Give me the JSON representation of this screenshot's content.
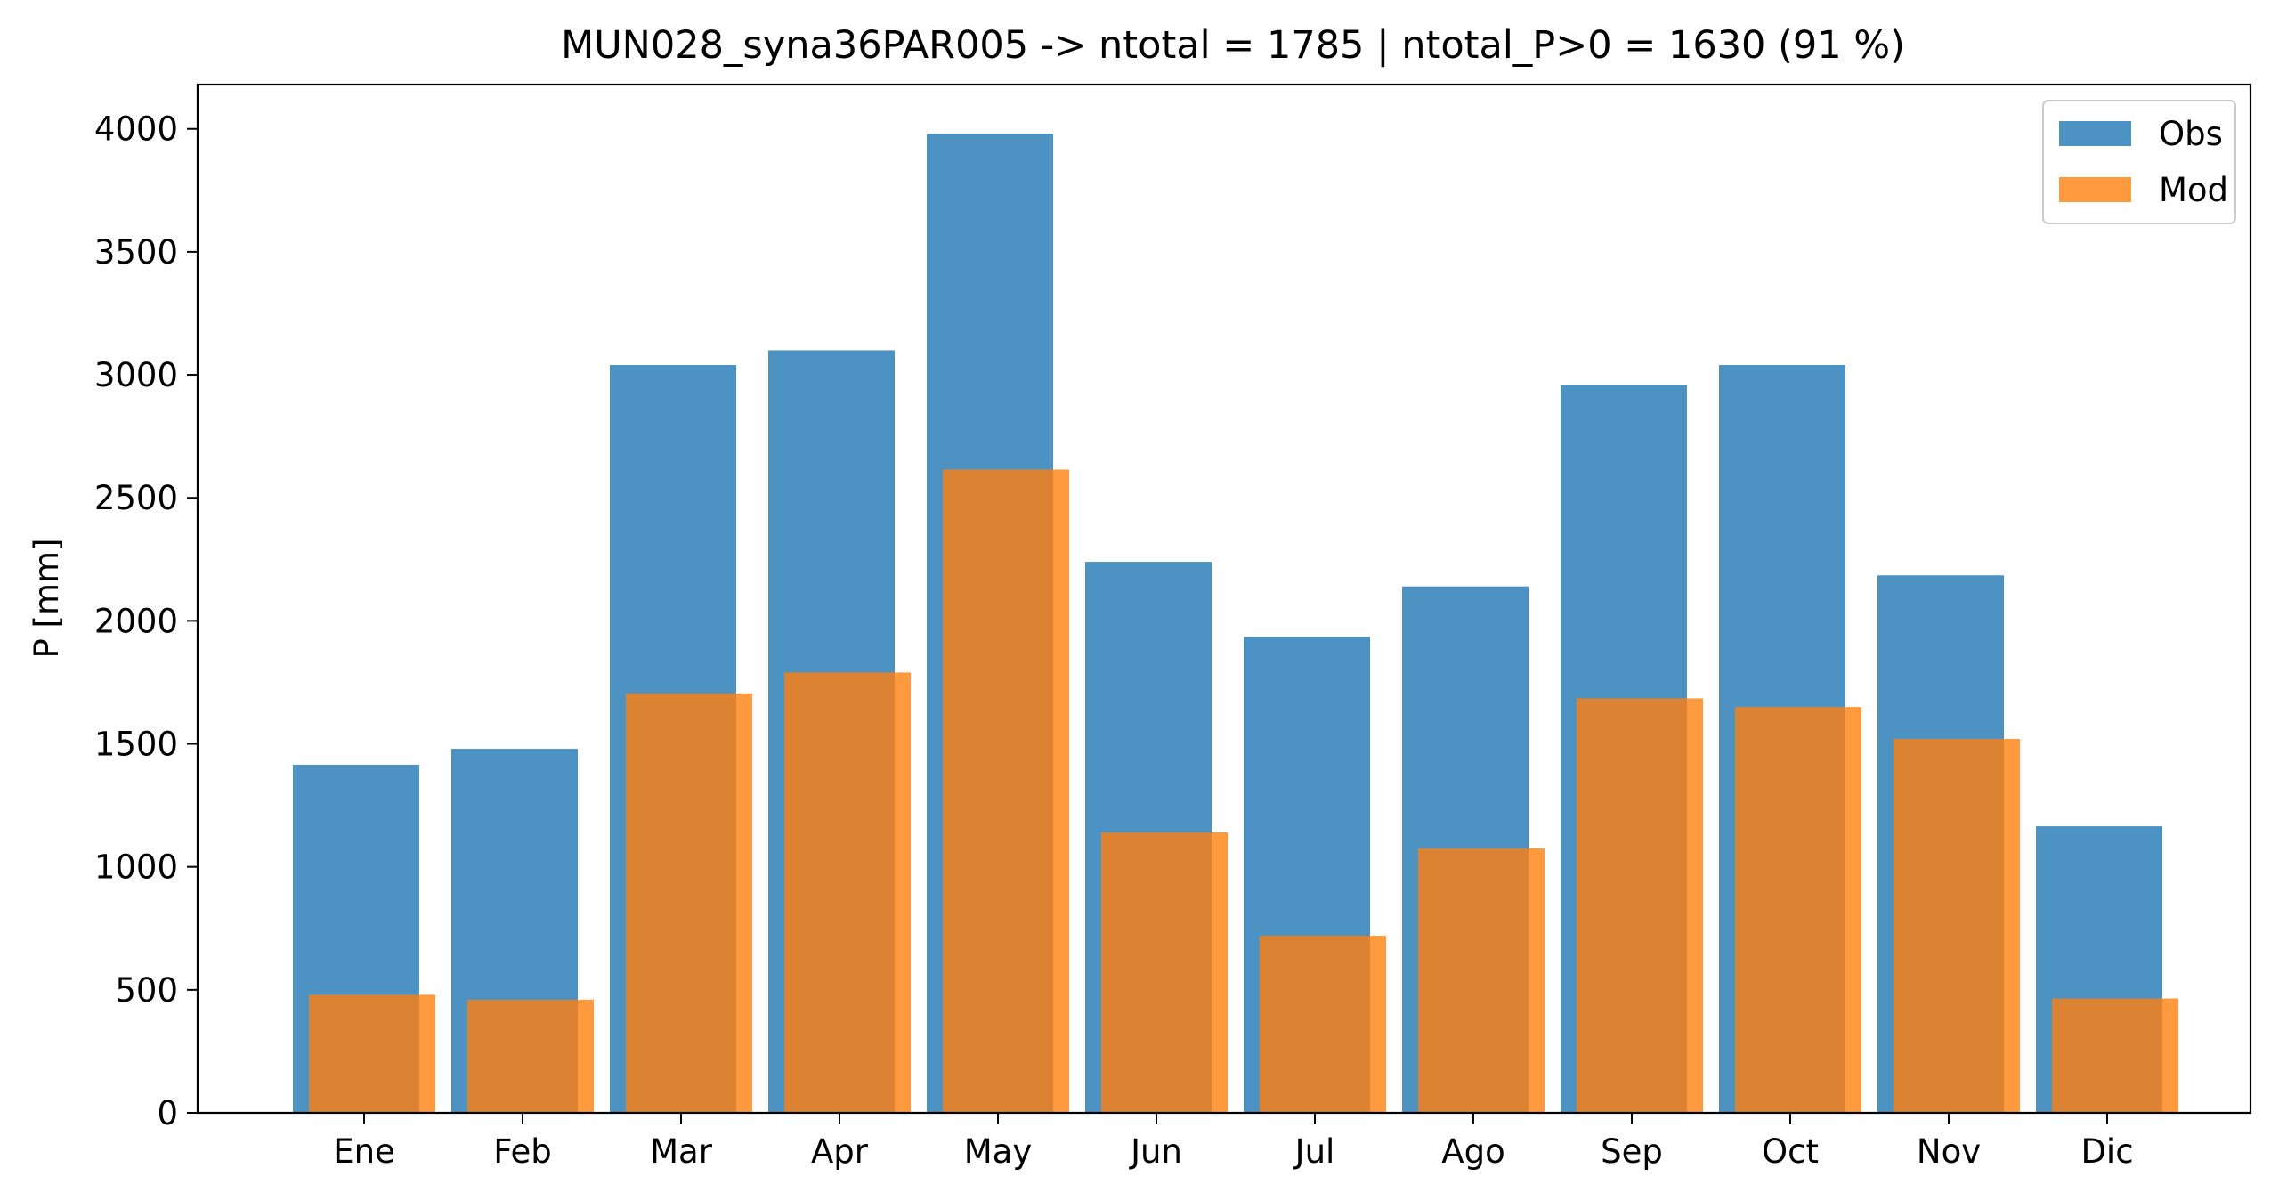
{
  "chart_data": {
    "type": "bar",
    "title": "MUN028_syna36PAR005 -> ntotal = 1785 | ntotal_P>0 = 1630 (91 %)",
    "xlabel": "",
    "ylabel": "P [mm]",
    "ylim": [
      0,
      4180
    ],
    "yticks": [
      0,
      500,
      1000,
      1500,
      2000,
      2500,
      3000,
      3500,
      4000
    ],
    "categories": [
      "Ene",
      "Feb",
      "Mar",
      "Apr",
      "May",
      "Jun",
      "Jul",
      "Ago",
      "Sep",
      "Oct",
      "Nov",
      "Dic"
    ],
    "series": [
      {
        "name": "Obs",
        "color": "#1f77b4",
        "values": [
          1415,
          1480,
          3040,
          3100,
          3980,
          2240,
          1935,
          2140,
          2960,
          3040,
          2185,
          1165
        ]
      },
      {
        "name": "Mod",
        "color": "#ff7f0e",
        "values": [
          480,
          460,
          1705,
          1790,
          2615,
          1140,
          720,
          1075,
          1685,
          1650,
          1520,
          465
        ]
      }
    ],
    "legend_position": "top-right",
    "grid": false
  }
}
